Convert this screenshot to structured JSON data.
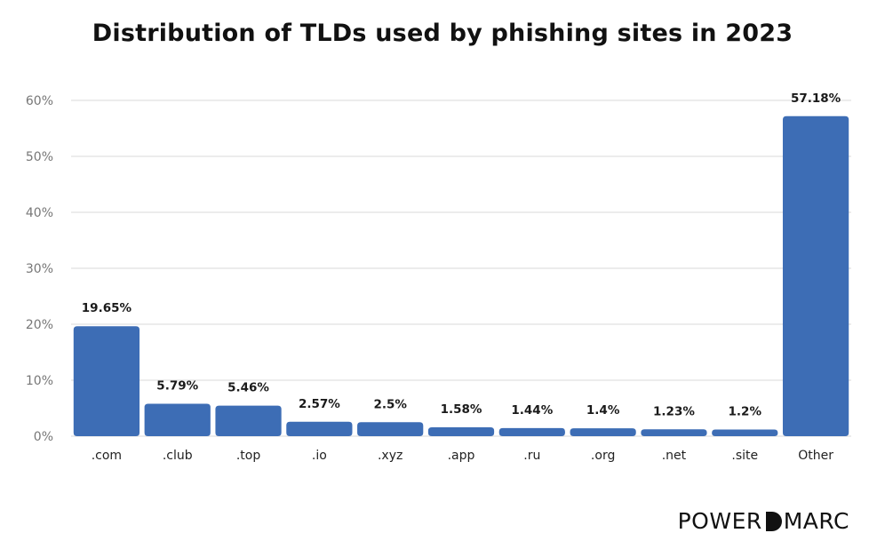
{
  "chart_data": {
    "type": "bar",
    "title": "Distribution of TLDs used by phishing sites in 2023",
    "categories": [
      ".com",
      ".club",
      ".top",
      ".io",
      ".xyz",
      ".app",
      ".ru",
      ".org",
      ".net",
      ".site",
      "Other"
    ],
    "values": [
      19.65,
      5.79,
      5.46,
      2.57,
      2.5,
      1.58,
      1.44,
      1.4,
      1.23,
      1.2,
      57.18
    ],
    "value_labels": [
      "19.65%",
      "5.79%",
      "5.46%",
      "2.57%",
      "2.5%",
      "1.58%",
      "1.44%",
      "1.4%",
      "1.23%",
      "1.2%",
      "57.18%"
    ],
    "ylim": [
      0,
      60
    ],
    "yticks": [
      0,
      10,
      20,
      30,
      40,
      50,
      60
    ],
    "ytick_labels": [
      "0%",
      "10%",
      "20%",
      "30%",
      "40%",
      "50%",
      "60%"
    ],
    "xlabel": "",
    "ylabel": "",
    "grid": true,
    "bar_color": "#3d6db5"
  },
  "brand": {
    "logo_left": "POWER",
    "logo_right": "MARC"
  }
}
